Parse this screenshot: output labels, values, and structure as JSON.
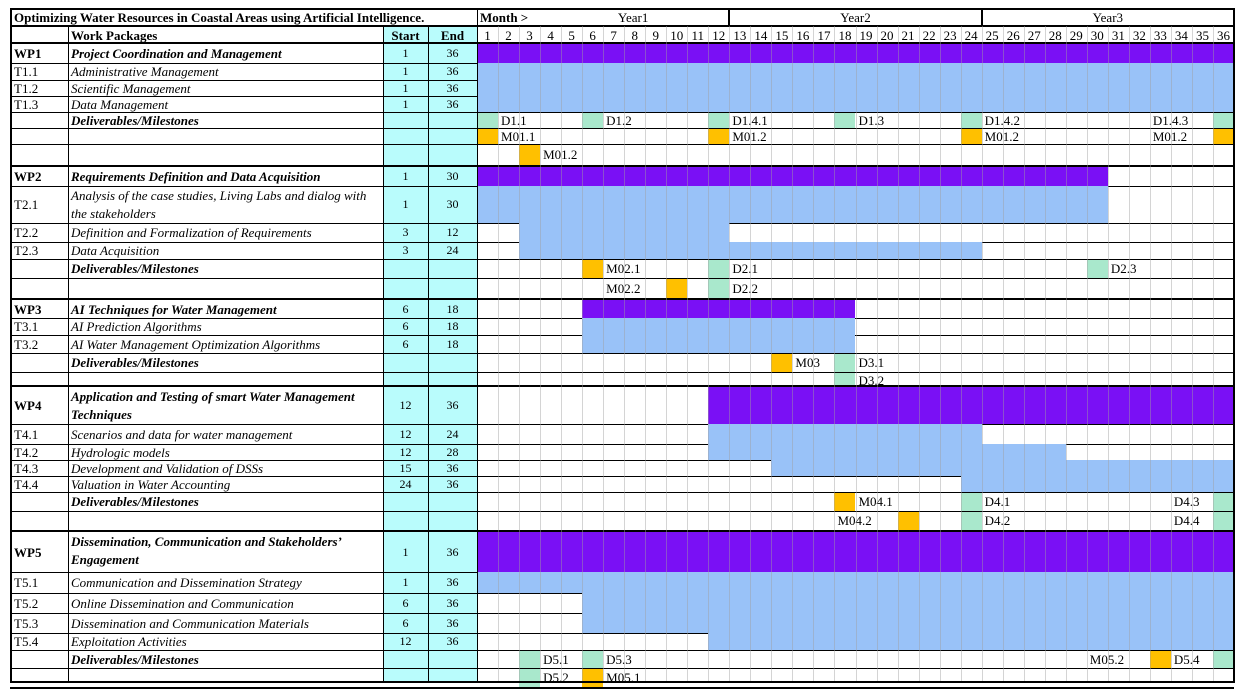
{
  "title": "Optimizing Water Resources in Coastal Areas using Artificial Intelligence.",
  "month_label": "Month >",
  "years": [
    "Year1",
    "Year2",
    "Year3"
  ],
  "months": [
    1,
    2,
    3,
    4,
    5,
    6,
    7,
    8,
    9,
    10,
    11,
    12,
    13,
    14,
    15,
    16,
    17,
    18,
    19,
    20,
    21,
    22,
    23,
    24,
    25,
    26,
    27,
    28,
    29,
    30,
    31,
    32,
    33,
    34,
    35,
    36
  ],
  "header": {
    "work_packages": "Work Packages",
    "start": "Start",
    "end": "End"
  },
  "colors": {
    "wp_bar": "#7a10f5",
    "task_bar": "#99c2f8",
    "start_end_bg": "#b9fcfc"
  },
  "work_packages": [
    {
      "id": "WP1",
      "name": "Project Coordination and Management",
      "start": 1,
      "end": 36,
      "tasks": [
        {
          "id": "T1.1",
          "name": "Administrative Management",
          "start": 1,
          "end": 36
        },
        {
          "id": "T1.2",
          "name": "Scientific Management",
          "start": 1,
          "end": 36
        },
        {
          "id": "T1.3",
          "name": "Data Management",
          "start": 1,
          "end": 36
        }
      ],
      "deliverables": {
        "label": "Deliverables/Milestones",
        "rows": [
          {
            "marks": [
              {
                "month": 1,
                "color": "#a9e8cc"
              },
              {
                "month": 6,
                "color": "#a9e8cc"
              },
              {
                "month": 12,
                "color": "#a9e8cc"
              },
              {
                "month": 18,
                "color": "#a9e8cc"
              },
              {
                "month": 24,
                "color": "#a9e8cc"
              },
              {
                "month": 36,
                "color": "#a9e8cc"
              }
            ],
            "labels": [
              {
                "month": 2,
                "text": "D1.1"
              },
              {
                "month": 7,
                "text": "D1.2"
              },
              {
                "month": 13,
                "text": "D1.4.1"
              },
              {
                "month": 19,
                "text": "D1.3"
              },
              {
                "month": 25,
                "text": "D1.4.2"
              },
              {
                "month": 33,
                "text": "D1.4.3"
              }
            ]
          },
          {
            "marks": [
              {
                "month": 1,
                "color": "#ffc000"
              },
              {
                "month": 12,
                "color": "#ffc000"
              },
              {
                "month": 24,
                "color": "#ffc000"
              },
              {
                "month": 36,
                "color": "#ffc000"
              }
            ],
            "labels": [
              {
                "month": 2,
                "text": "M01.1"
              },
              {
                "month": 13,
                "text": "M01.2"
              },
              {
                "month": 25,
                "text": "M01.2"
              },
              {
                "month": 33,
                "text": "M01.2"
              }
            ]
          },
          {
            "marks": [
              {
                "month": 3,
                "color": "#ffc000"
              }
            ],
            "labels": [
              {
                "month": 4,
                "text": "M01.2"
              }
            ]
          }
        ]
      }
    },
    {
      "id": "WP2",
      "name": "Requirements Definition and Data Acquisition",
      "start": 1,
      "end": 30,
      "tasks": [
        {
          "id": "T2.1",
          "name": "Analysis of the case studies, Living Labs and dialog with the stakeholders",
          "start": 1,
          "end": 30
        },
        {
          "id": "T2.2",
          "name": "Definition and Formalization of Requirements",
          "start": 3,
          "end": 12
        },
        {
          "id": "T2.3",
          "name": "Data Acquisition",
          "start": 3,
          "end": 24
        }
      ],
      "deliverables": {
        "label": "Deliverables/Milestones",
        "rows": [
          {
            "marks": [
              {
                "month": 6,
                "color": "#ffc000"
              },
              {
                "month": 12,
                "color": "#a9e8cc"
              },
              {
                "month": 30,
                "color": "#a9e8cc"
              }
            ],
            "labels": [
              {
                "month": 7,
                "text": "M02.1"
              },
              {
                "month": 13,
                "text": "D2.1"
              },
              {
                "month": 31,
                "text": "D2.3"
              }
            ]
          },
          {
            "marks": [
              {
                "month": 10,
                "color": "#ffc000"
              },
              {
                "month": 12,
                "color": "#a9e8cc"
              }
            ],
            "labels": [
              {
                "month": 7,
                "text": "M02.2"
              },
              {
                "month": 13,
                "text": "D2.2"
              }
            ]
          }
        ]
      }
    },
    {
      "id": "WP3",
      "name": "AI Techniques for Water Management",
      "start": 6,
      "end": 18,
      "tasks": [
        {
          "id": "T3.1",
          "name": "AI Prediction Algorithms",
          "start": 6,
          "end": 18
        },
        {
          "id": "T3.2",
          "name": "AI Water Management Optimization Algorithms",
          "start": 6,
          "end": 18
        }
      ],
      "deliverables": {
        "label": "Deliverables/Milestones",
        "rows": [
          {
            "marks": [
              {
                "month": 15,
                "color": "#ffc000"
              },
              {
                "month": 18,
                "color": "#a9e8cc"
              }
            ],
            "labels": [
              {
                "month": 16,
                "text": "M03"
              },
              {
                "month": 19,
                "text": "D3.1"
              }
            ]
          },
          {
            "marks": [
              {
                "month": 18,
                "color": "#a9e8cc"
              }
            ],
            "labels": [
              {
                "month": 19,
                "text": "D3.2"
              }
            ]
          }
        ]
      }
    },
    {
      "id": "WP4",
      "name": "Application and Testing of smart Water Management Techniques",
      "start": 12,
      "end": 36,
      "tasks": [
        {
          "id": "T4.1",
          "name": "Scenarios and data for water management",
          "start": 12,
          "end": 24
        },
        {
          "id": "T4.2",
          "name": "Hydrologic models",
          "start": 12,
          "end": 28
        },
        {
          "id": "T4.3",
          "name": "Development and Validation of DSSs",
          "start": 15,
          "end": 36
        },
        {
          "id": "T4.4",
          "name": "Valuation in Water Accounting",
          "start": 24,
          "end": 36
        }
      ],
      "deliverables": {
        "label": "Deliverables/Milestones",
        "rows": [
          {
            "marks": [
              {
                "month": 18,
                "color": "#ffc000"
              },
              {
                "month": 24,
                "color": "#a9e8cc"
              },
              {
                "month": 36,
                "color": "#a9e8cc"
              }
            ],
            "labels": [
              {
                "month": 19,
                "text": "M04.1"
              },
              {
                "month": 25,
                "text": "D4.1"
              },
              {
                "month": 34,
                "text": "D4.3"
              }
            ]
          },
          {
            "marks": [
              {
                "month": 21,
                "color": "#ffc000"
              },
              {
                "month": 24,
                "color": "#a9e8cc"
              },
              {
                "month": 36,
                "color": "#a9e8cc"
              }
            ],
            "labels": [
              {
                "month": 18,
                "text": "M04.2"
              },
              {
                "month": 25,
                "text": "D4.2"
              },
              {
                "month": 34,
                "text": "D4.4"
              }
            ]
          }
        ]
      }
    },
    {
      "id": "WP5",
      "name": "Dissemination, Communication and Stakeholders’ Engagement",
      "start": 1,
      "end": 36,
      "tasks": [
        {
          "id": "T5.1",
          "name": "Communication and Dissemination Strategy",
          "start": 1,
          "end": 36
        },
        {
          "id": "T5.2",
          "name": "Online Dissemination and Communication",
          "start": 6,
          "end": 36
        },
        {
          "id": "T5.3",
          "name": "Dissemination and Communication Materials",
          "start": 6,
          "end": 36
        },
        {
          "id": "T5.4",
          "name": "Exploitation Activities",
          "start": 12,
          "end": 36
        }
      ],
      "deliverables": {
        "label": "Deliverables/Milestones",
        "rows": [
          {
            "marks": [
              {
                "month": 3,
                "color": "#a9e8cc"
              },
              {
                "month": 6,
                "color": "#a9e8cc"
              },
              {
                "month": 33,
                "color": "#ffc000"
              },
              {
                "month": 36,
                "color": "#a9e8cc"
              }
            ],
            "labels": [
              {
                "month": 4,
                "text": "D5.1"
              },
              {
                "month": 7,
                "text": "D5.3"
              },
              {
                "month": 30,
                "text": "M05.2"
              },
              {
                "month": 34,
                "text": "D5.4"
              }
            ]
          },
          {
            "marks": [
              {
                "month": 3,
                "color": "#a9e8cc"
              },
              {
                "month": 6,
                "color": "#ffc000"
              }
            ],
            "labels": [
              {
                "month": 4,
                "text": "D5.2"
              },
              {
                "month": 7,
                "text": "M05.1"
              }
            ]
          }
        ]
      }
    }
  ]
}
